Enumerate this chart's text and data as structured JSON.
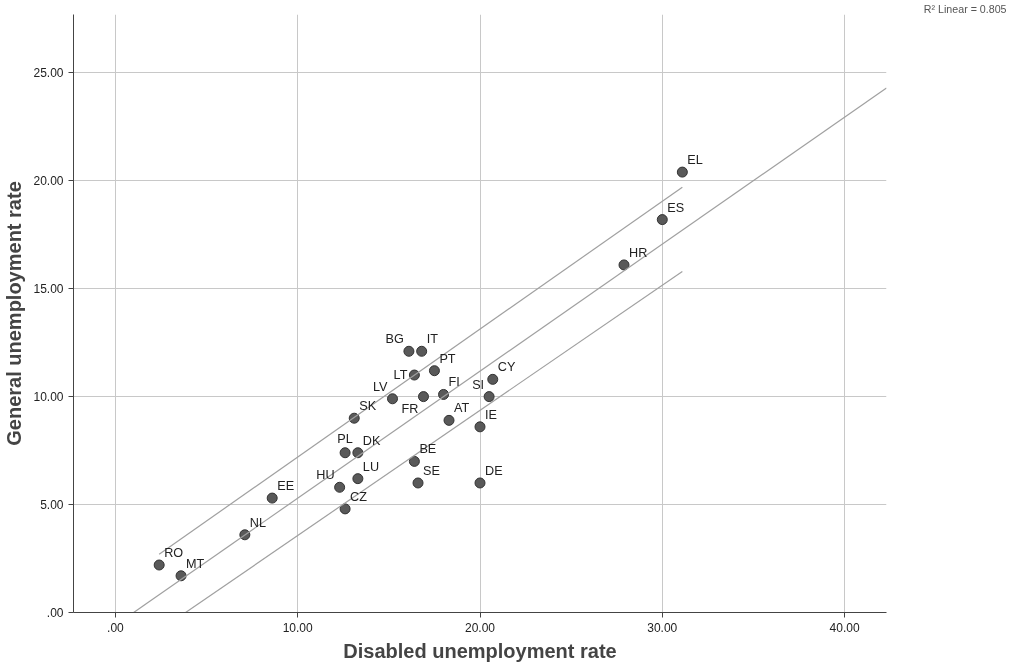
{
  "chart_data": {
    "type": "scatter",
    "xlabel": "Disabled unemployment rate",
    "ylabel": "General unemployment rate",
    "annotations": [
      "R² Linear = 0.805"
    ],
    "xlim": [
      -2.3,
      42.3
    ],
    "ylim": [
      0,
      27.7
    ],
    "xticks": [
      {
        "value": 0,
        "label": ".00"
      },
      {
        "value": 10,
        "label": "10.00"
      },
      {
        "value": 20,
        "label": "20.00"
      },
      {
        "value": 30,
        "label": "30.00"
      },
      {
        "value": 40,
        "label": "40.00"
      }
    ],
    "yticks": [
      {
        "value": 0,
        "label": ".00"
      },
      {
        "value": 5,
        "label": "5.00"
      },
      {
        "value": 10,
        "label": "10.00"
      },
      {
        "value": 15,
        "label": "15.00"
      },
      {
        "value": 20,
        "label": "20.00"
      },
      {
        "value": 25,
        "label": "25.00"
      }
    ],
    "grid": true,
    "series": [
      {
        "marker": "circle",
        "color": "#595959",
        "x": [
          2.4,
          3.6,
          7.1,
          8.6,
          12.3,
          12.6,
          12.6,
          13.3,
          13.3,
          13.1,
          15.2,
          16.1,
          16.8,
          16.4,
          16.9,
          17.5,
          18.0,
          18.3,
          16.4,
          16.6,
          20.0,
          20.0,
          20.5,
          20.7,
          27.9,
          30.0,
          31.1
        ],
        "values": [
          2.2,
          1.7,
          3.6,
          5.3,
          5.8,
          4.8,
          7.4,
          7.4,
          6.2,
          9.0,
          9.9,
          12.1,
          12.1,
          11.0,
          10.0,
          11.2,
          10.1,
          8.9,
          7.0,
          6.0,
          6.0,
          8.6,
          10.0,
          10.8,
          16.1,
          18.2,
          20.4
        ],
        "value_labels": [
          "RO",
          "MT",
          "NL",
          "EE",
          "HU",
          "CZ",
          "PL",
          "DK",
          "LU",
          "SK",
          "LV",
          "BG",
          "IT",
          "LT",
          "FR",
          "PT",
          "FI",
          "AT",
          "BE",
          "SE",
          "DE",
          "IE",
          "SI",
          "CY",
          "HR",
          "ES",
          "EL"
        ]
      },
      {
        "type": "line",
        "marker": "none",
        "color": "#a0a0a0",
        "x": [
          1.0,
          42.3
        ],
        "values": [
          0,
          24.3
        ]
      },
      {
        "type": "line",
        "marker": "none",
        "color": "#a0a0a0",
        "x": [
          2.4,
          31.1
        ],
        "values": [
          2.7,
          19.7
        ]
      },
      {
        "type": "line",
        "marker": "none",
        "color": "#a0a0a0",
        "x": [
          3.85,
          31.1
        ],
        "values": [
          0,
          15.8
        ]
      }
    ]
  }
}
